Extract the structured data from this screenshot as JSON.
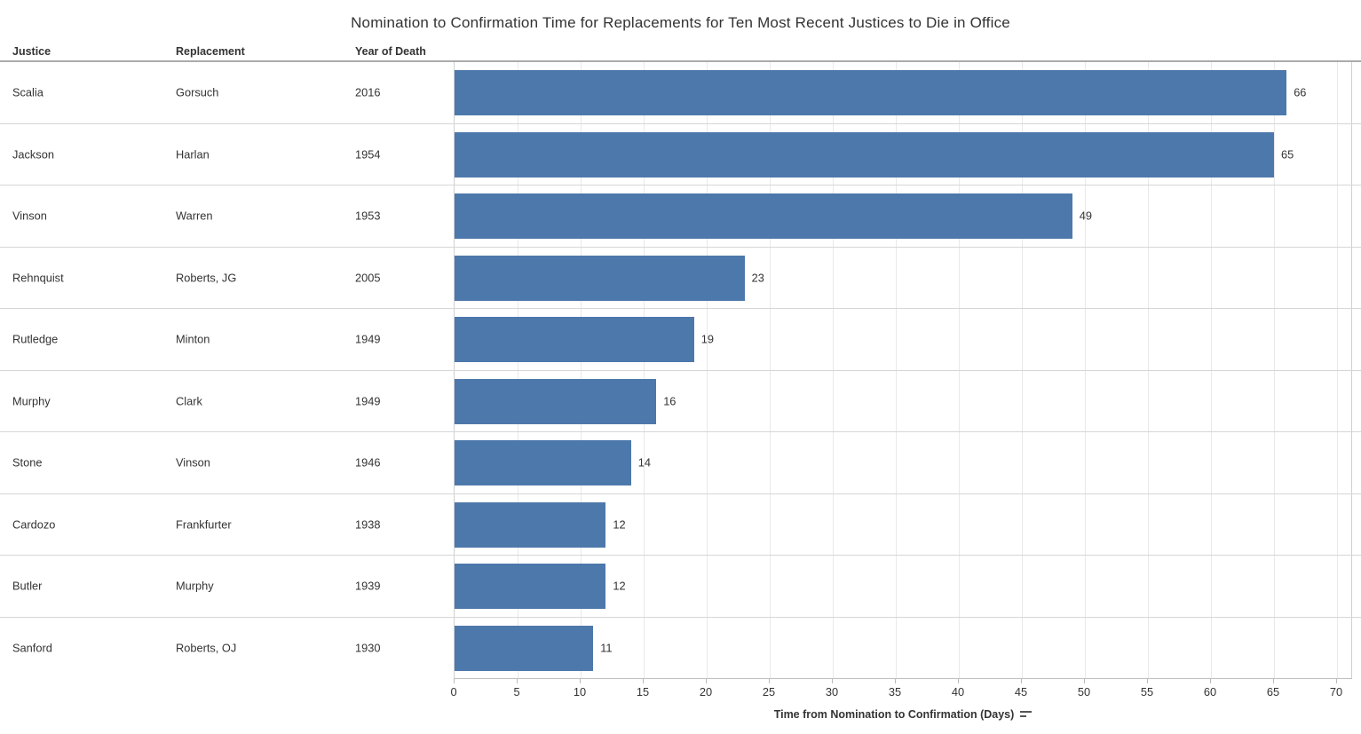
{
  "chart_data": {
    "type": "bar",
    "orientation": "horizontal",
    "title": "Nomination to Confirmation Time for Replacements for Ten Most Recent Justices to Die in Office",
    "xlabel": "Time from Nomination to Confirmation (Days)",
    "xlim": [
      0,
      70
    ],
    "x_ticks": [
      0,
      5,
      10,
      15,
      20,
      25,
      30,
      35,
      40,
      45,
      50,
      55,
      60,
      65,
      70
    ],
    "grid": true,
    "sort_order": "descending",
    "bar_color": "#4d78ab",
    "columns": [
      "Justice",
      "Replacement",
      "Year of Death"
    ],
    "rows": [
      {
        "justice": "Scalia",
        "replacement": "Gorsuch",
        "year": "2016",
        "days": 66
      },
      {
        "justice": "Jackson",
        "replacement": "Harlan",
        "year": "1954",
        "days": 65
      },
      {
        "justice": "Vinson",
        "replacement": "Warren",
        "year": "1953",
        "days": 49
      },
      {
        "justice": "Rehnquist",
        "replacement": "Roberts, JG",
        "year": "2005",
        "days": 23
      },
      {
        "justice": "Rutledge",
        "replacement": "Minton",
        "year": "1949",
        "days": 19
      },
      {
        "justice": "Murphy",
        "replacement": "Clark",
        "year": "1949",
        "days": 16
      },
      {
        "justice": "Stone",
        "replacement": "Vinson",
        "year": "1946",
        "days": 14
      },
      {
        "justice": "Cardozo",
        "replacement": "Frankfurter",
        "year": "1938",
        "days": 12
      },
      {
        "justice": "Butler",
        "replacement": "Murphy",
        "year": "1939",
        "days": 12
      },
      {
        "justice": "Sanford",
        "replacement": "Roberts, OJ",
        "year": "1930",
        "days": 11
      }
    ]
  }
}
